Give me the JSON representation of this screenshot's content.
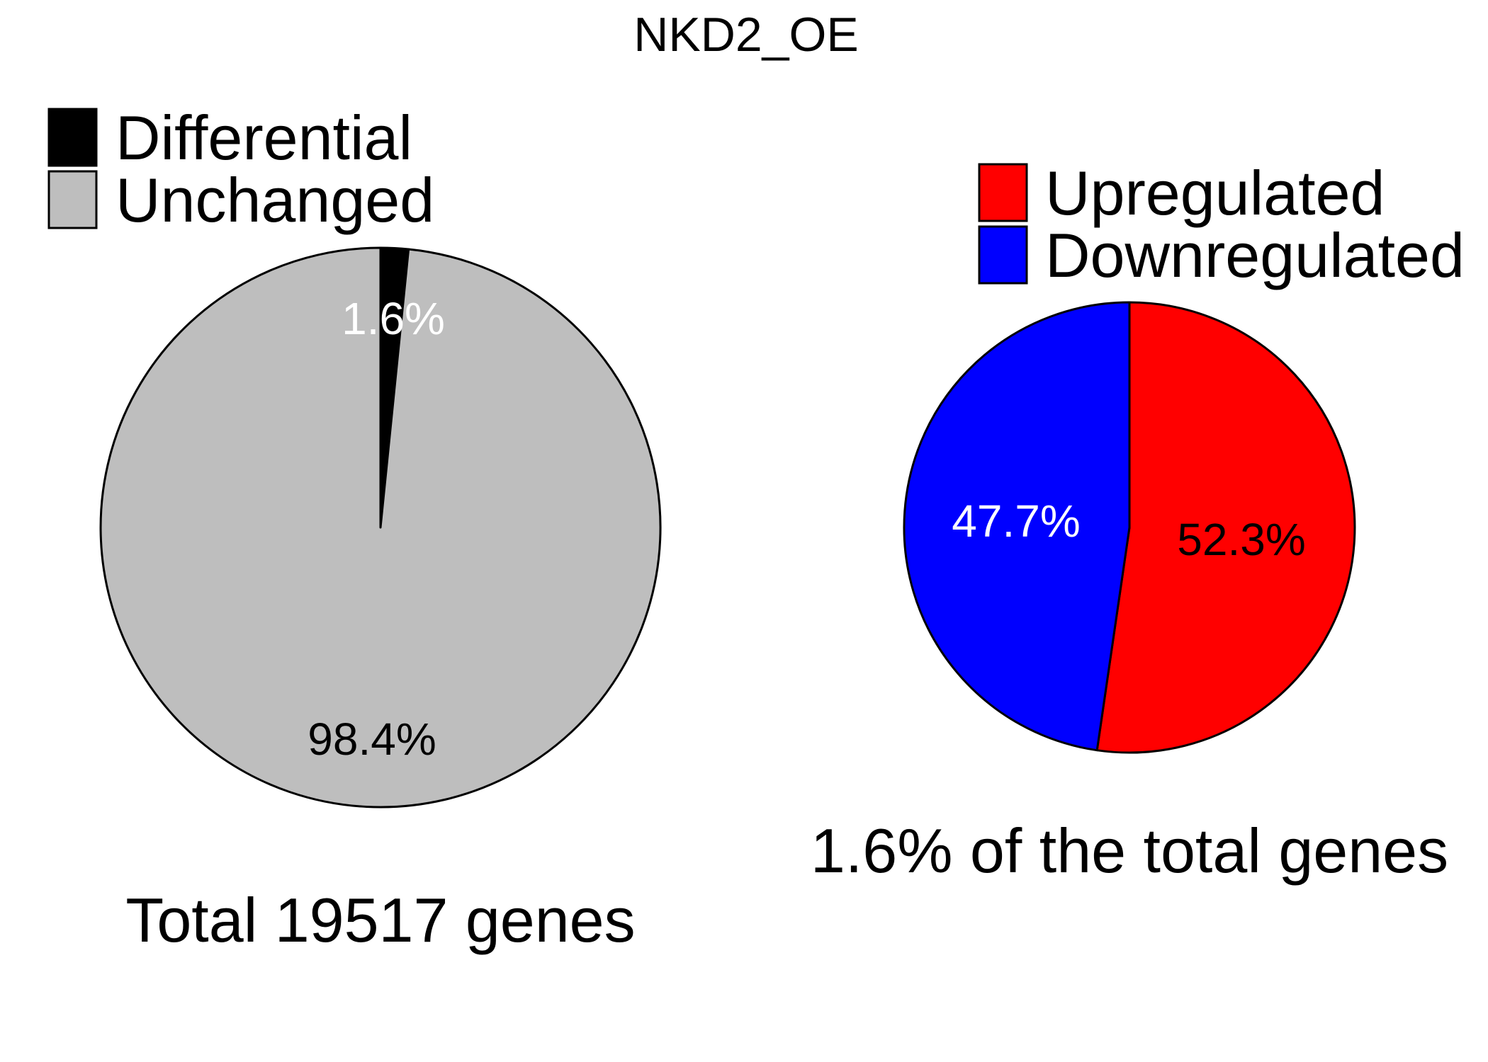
{
  "title": "NKD2_OE",
  "chart_data": [
    {
      "type": "pie",
      "legend_placement": "top-left",
      "slices": [
        {
          "name": "Differential",
          "value": 1.6,
          "label": "1.6%",
          "color": "#000000",
          "label_color": "#ffffff"
        },
        {
          "name": "Unchanged",
          "value": 98.4,
          "label": "98.4%",
          "color": "#bebebe",
          "label_color": "#000000"
        }
      ],
      "caption": "Total 19517 genes"
    },
    {
      "type": "pie",
      "legend_placement": "top-right",
      "slices": [
        {
          "name": "Upregulated",
          "value": 52.3,
          "label": "52.3%",
          "color": "#ff0000",
          "label_color": "#000000"
        },
        {
          "name": "Downregulated",
          "value": 47.7,
          "label": "47.7%",
          "color": "#0000ff",
          "label_color": "#ffffff"
        }
      ],
      "caption": "1.6% of the total genes"
    }
  ]
}
